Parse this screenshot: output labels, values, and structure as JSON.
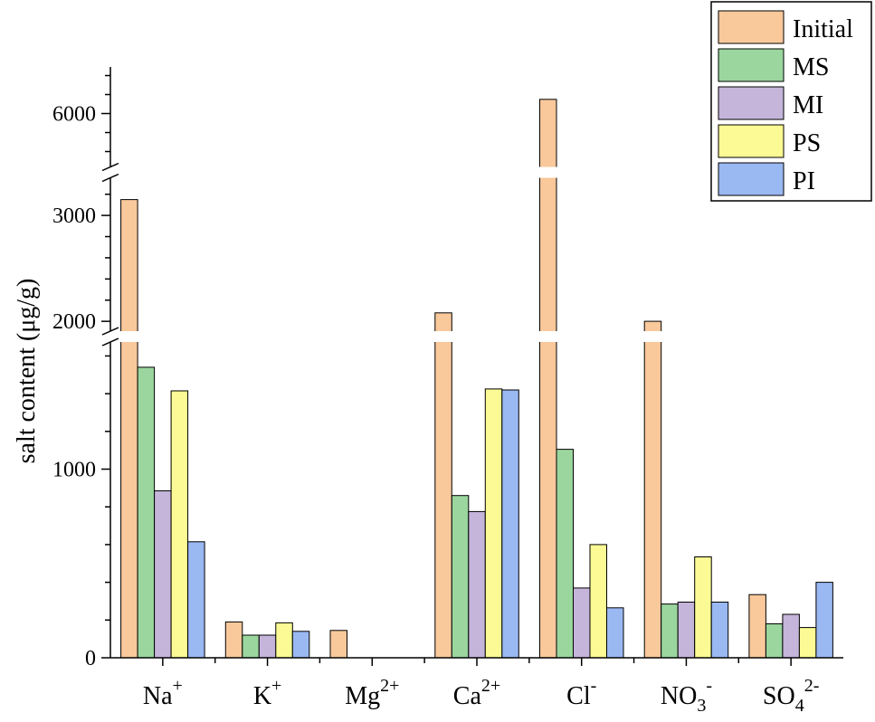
{
  "chart_data": {
    "type": "bar",
    "title": "",
    "xlabel": "",
    "ylabel": "salt content (μg/g)",
    "categories": [
      {
        "base": "Na",
        "sub": "",
        "sup": "+"
      },
      {
        "base": "K",
        "sub": "",
        "sup": "+"
      },
      {
        "base": "Mg",
        "sub": "",
        "sup": "2+"
      },
      {
        "base": "Ca",
        "sub": "",
        "sup": "2+"
      },
      {
        "base": "Cl",
        "sub": "",
        "sup": "-"
      },
      {
        "base": "NO",
        "sub": "3",
        "sup": "-"
      },
      {
        "base": "SO",
        "sub": "4",
        "sup": "2-"
      }
    ],
    "series": [
      {
        "name": "Initial",
        "color": "#F9C89B",
        "values": [
          3150,
          190,
          145,
          2080,
          6150,
          2000,
          335
        ]
      },
      {
        "name": "MS",
        "color": "#9AD69E",
        "values": [
          1540,
          120,
          0,
          860,
          1105,
          285,
          180
        ]
      },
      {
        "name": "MI",
        "color": "#C5B5DA",
        "values": [
          885,
          120,
          0,
          775,
          370,
          295,
          230
        ]
      },
      {
        "name": "PS",
        "color": "#FBFA94",
        "values": [
          1415,
          185,
          0,
          1425,
          600,
          535,
          160
        ]
      },
      {
        "name": "PI",
        "color": "#9AB8F2",
        "values": [
          615,
          140,
          0,
          1420,
          265,
          295,
          400
        ]
      }
    ],
    "y_axis": {
      "broken": true,
      "segments": [
        {
          "range": [
            0,
            1650
          ],
          "ticks": [
            0,
            1000
          ],
          "minor_step": 200
        },
        {
          "range": [
            1950,
            3300
          ],
          "ticks": [
            2000,
            3000
          ],
          "minor_step": 200
        },
        {
          "range": [
            5500,
            6500
          ],
          "ticks": [
            6000
          ],
          "minor_step": 200
        }
      ]
    },
    "legend": {
      "position": "top-right",
      "entries": [
        "Initial",
        "MS",
        "MI",
        "PS",
        "PI"
      ]
    }
  }
}
